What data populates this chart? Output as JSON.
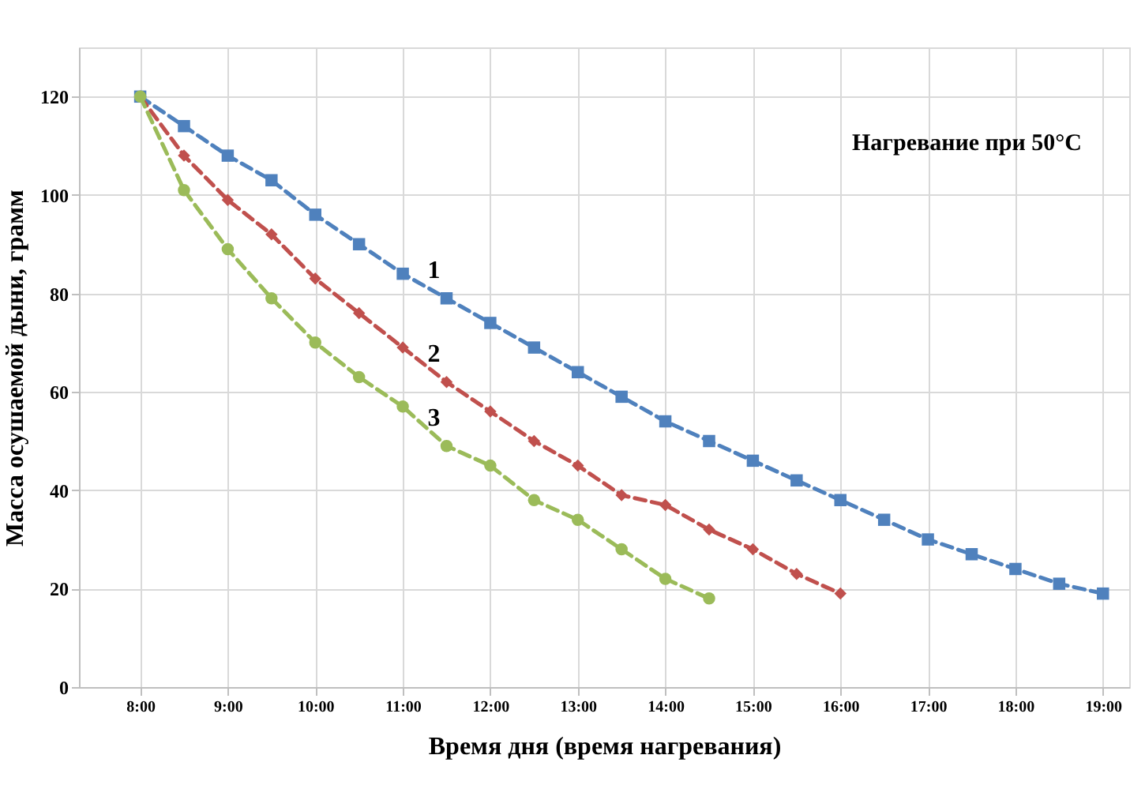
{
  "chart_data": {
    "type": "line",
    "xlabel": "Время дня (время нагревания)",
    "ylabel": "Масса осушаемой дыни, грамм",
    "annotations": [
      "Нагревание при 50°C"
    ],
    "series": [
      {
        "name": "1",
        "color": "#4f81bd",
        "marker": "square",
        "x": [
          8,
          8.5,
          9,
          9.5,
          10,
          10.5,
          11,
          11.5,
          12,
          12.5,
          13,
          13.5,
          14,
          14.5,
          15,
          15.5,
          16,
          16.5,
          17,
          17.5,
          18,
          18.5,
          19
        ],
        "values": [
          120,
          114,
          108,
          103,
          96,
          90,
          84,
          79,
          74,
          69,
          64,
          59,
          54,
          50,
          46,
          42,
          38,
          34,
          30,
          27,
          24,
          21,
          19
        ]
      },
      {
        "name": "2",
        "color": "#c0504d",
        "marker": "diamond",
        "x": [
          8,
          8.5,
          9,
          9.5,
          10,
          10.5,
          11,
          11.5,
          12,
          12.5,
          13,
          13.5,
          14,
          14.5,
          15,
          15.5,
          16
        ],
        "values": [
          120,
          108,
          99,
          92,
          83,
          76,
          69,
          62,
          56,
          50,
          45,
          39,
          37,
          32,
          28,
          23,
          19
        ]
      },
      {
        "name": "3",
        "color": "#9bbb59",
        "marker": "circle",
        "x": [
          8,
          8.5,
          9,
          9.5,
          10,
          10.5,
          11,
          11.5,
          12,
          12.5,
          13,
          13.5,
          14,
          14.5
        ],
        "values": [
          120,
          101,
          89,
          79,
          70,
          63,
          57,
          49,
          45,
          38,
          34,
          28,
          22,
          18
        ]
      }
    ],
    "xlim": [
      7.3,
      19.3
    ],
    "xticks": [
      {
        "value": 8,
        "label": "8:00"
      },
      {
        "value": 9,
        "label": "9:00"
      },
      {
        "value": 10,
        "label": "10:00"
      },
      {
        "value": 11,
        "label": "11:00"
      },
      {
        "value": 12,
        "label": "12:00"
      },
      {
        "value": 13,
        "label": "13:00"
      },
      {
        "value": 14,
        "label": "14:00"
      },
      {
        "value": 15,
        "label": "15:00"
      },
      {
        "value": 16,
        "label": "16:00"
      },
      {
        "value": 17,
        "label": "17:00"
      },
      {
        "value": 18,
        "label": "18:00"
      },
      {
        "value": 19,
        "label": "19:00"
      }
    ],
    "ylim": [
      0,
      130
    ],
    "yticks": [
      0,
      20,
      40,
      60,
      80,
      100,
      120
    ],
    "grid": true,
    "line_style": "dashed"
  }
}
